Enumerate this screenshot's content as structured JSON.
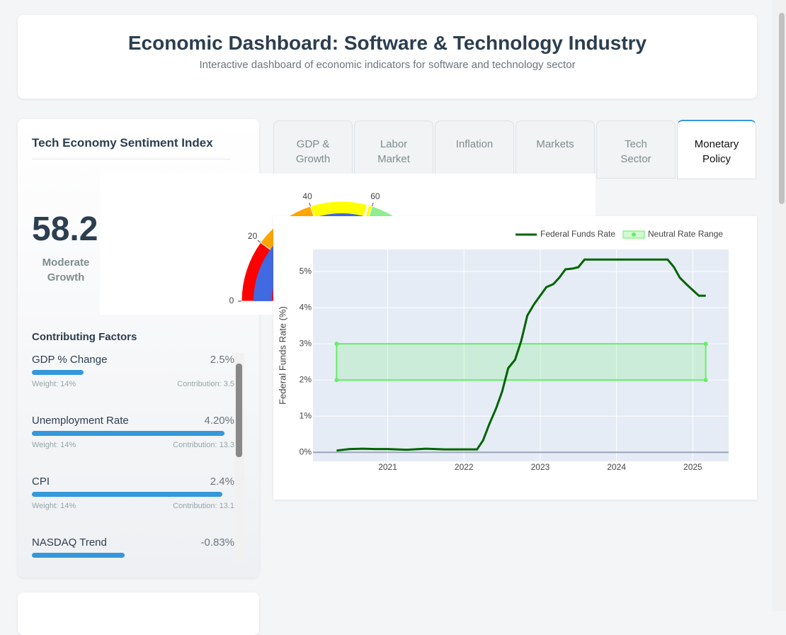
{
  "header": {
    "title": "Economic Dashboard: Software & Technology Industry",
    "subtitle": "Interactive dashboard of economic indicators for software and technology sector"
  },
  "sentiment": {
    "title": "Tech Economy Sentiment Index",
    "value": 58.2,
    "label": "Moderate Growth",
    "gauge": {
      "range": [
        0,
        100
      ],
      "ticks": [
        0,
        20,
        40,
        60
      ],
      "bar_color": "#4169e1",
      "steps": [
        {
          "range": [
            0,
            20
          ],
          "color": "#ff0000"
        },
        {
          "range": [
            20,
            40
          ],
          "color": "#ffa500"
        },
        {
          "range": [
            40,
            60
          ],
          "color": "#ffff00"
        },
        {
          "range": [
            60,
            100
          ],
          "color": "#90ee90"
        }
      ]
    }
  },
  "factors": {
    "title": "Contributing Factors",
    "items": [
      {
        "name": "GDP % Change",
        "value": "2.5%",
        "bar": 27,
        "weight": "Weight: 14%",
        "contribution": "Contribution: 3.5"
      },
      {
        "name": "Unemployment Rate",
        "value": "4.20%",
        "bar": 100,
        "weight": "Weight: 14%",
        "contribution": "Contribution: 13.3"
      },
      {
        "name": "CPI",
        "value": "2.4%",
        "bar": 99,
        "weight": "Weight: 14%",
        "contribution": "Contribution: 13.1"
      },
      {
        "name": "NASDAQ Trend",
        "value": "-0.83%",
        "bar": 48
      }
    ]
  },
  "tabs": [
    "GDP & Growth",
    "Labor Market",
    "Inflation",
    "Markets",
    "Tech Sector",
    "Monetary Policy"
  ],
  "active_tab": 5,
  "chart_data": {
    "type": "line",
    "y_label": "Federal Funds Rate (%)",
    "xlim": [
      2020.02,
      2025.47
    ],
    "xticks": [
      2021,
      2022,
      2023,
      2024,
      2025
    ],
    "ylim": [
      -0.25,
      5.61
    ],
    "yticks": [
      {
        "value": 0,
        "label": "0%"
      },
      {
        "value": 1,
        "label": "1%"
      },
      {
        "value": 2,
        "label": "2%"
      },
      {
        "value": 3,
        "label": "3%"
      },
      {
        "value": 4,
        "label": "4%"
      },
      {
        "value": 5,
        "label": "5%"
      }
    ],
    "grid": true,
    "series": [
      {
        "name": "Federal Funds Rate",
        "color": "#006400",
        "x": [
          2020.33,
          2020.5,
          2020.67,
          2020.83,
          2021,
          2021.25,
          2021.5,
          2021.75,
          2022,
          2022.17,
          2022.25,
          2022.33,
          2022.42,
          2022.5,
          2022.58,
          2022.67,
          2022.75,
          2022.83,
          2022.92,
          2023.08,
          2023.17,
          2023.25,
          2023.33,
          2023.42,
          2023.5,
          2023.58,
          2023.75,
          2024,
          2024.25,
          2024.5,
          2024.67,
          2024.75,
          2024.83,
          2024.92,
          2025.08,
          2025.17
        ],
        "values": [
          0.05,
          0.09,
          0.1,
          0.09,
          0.09,
          0.07,
          0.1,
          0.08,
          0.08,
          0.08,
          0.33,
          0.77,
          1.21,
          1.68,
          2.33,
          2.56,
          3.08,
          3.78,
          4.1,
          4.57,
          4.65,
          4.83,
          5.06,
          5.08,
          5.12,
          5.33,
          5.33,
          5.33,
          5.33,
          5.33,
          5.33,
          5.13,
          4.83,
          4.64,
          4.33,
          4.33
        ]
      },
      {
        "name": "Neutral Rate Range",
        "color": "#66ee66",
        "x": [
          2020.33,
          2025.17
        ],
        "upper": [
          3,
          3
        ],
        "lower": [
          2,
          2
        ]
      }
    ]
  }
}
